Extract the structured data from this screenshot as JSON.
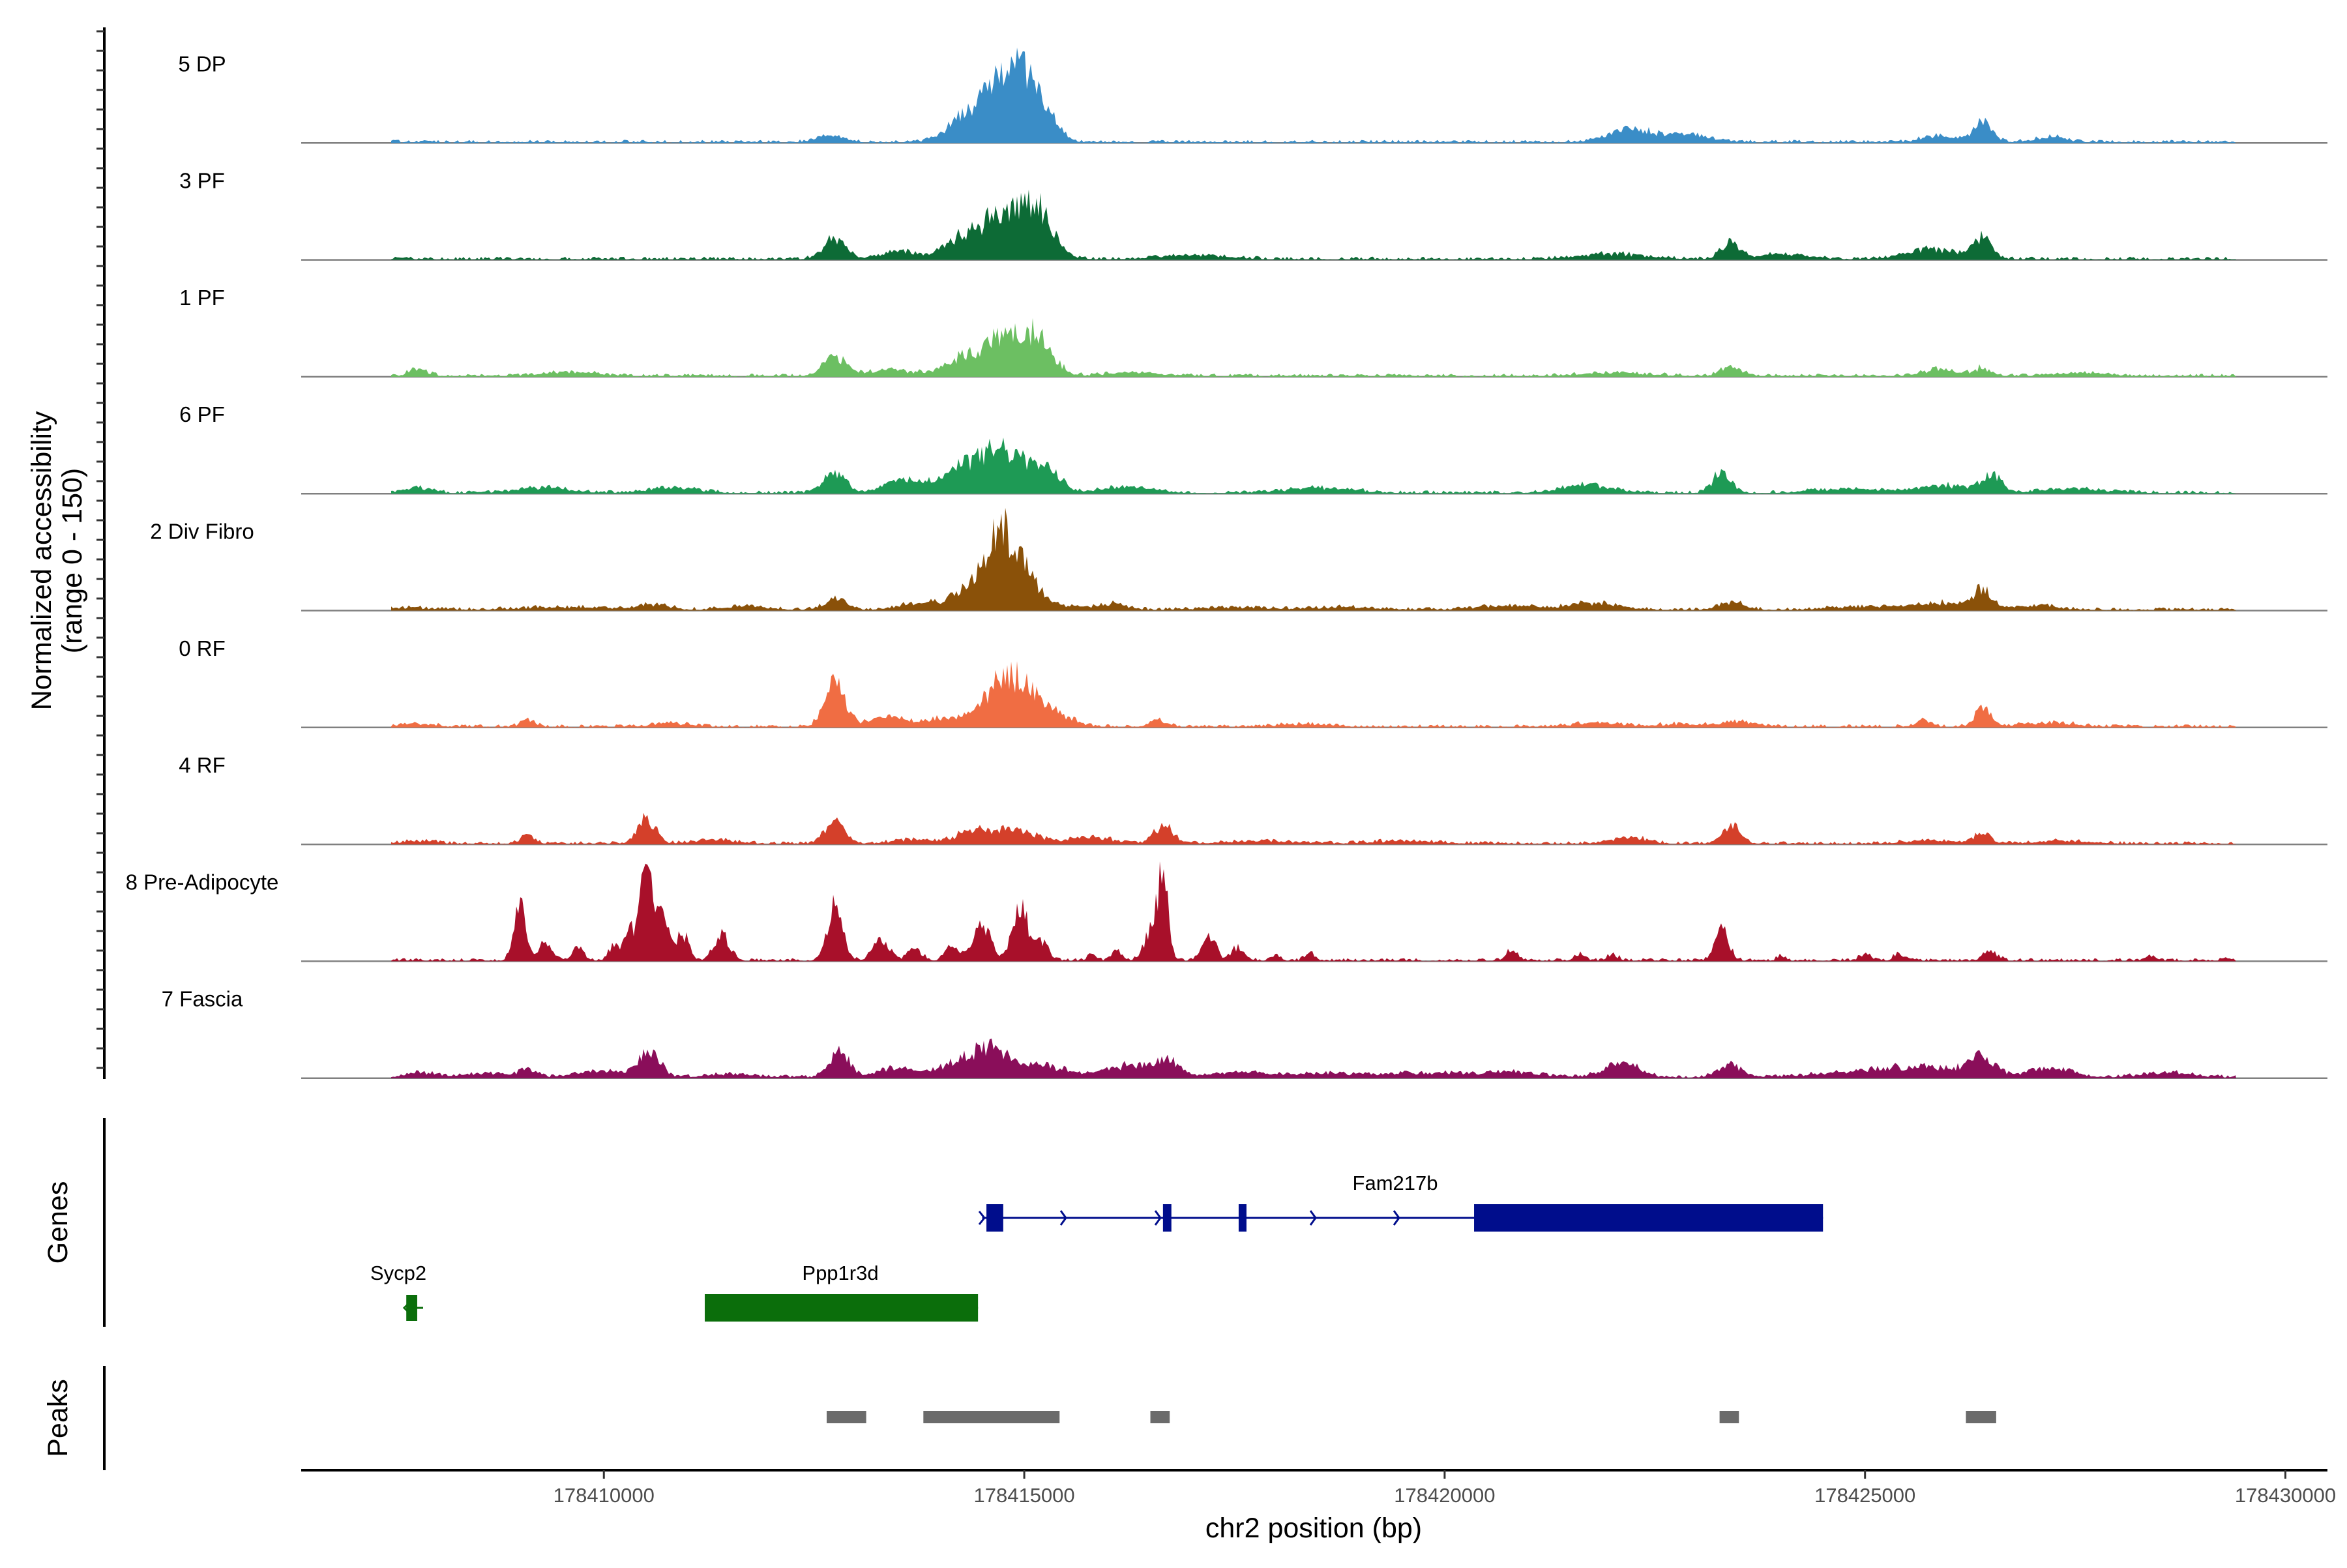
{
  "chart_data": {
    "type": "area",
    "title": "",
    "xlabel": "chr2 position (bp)",
    "ylabel": "Normalized accessibility",
    "ylabel_sub": "(range 0 - 150)",
    "xlim": [
      178406400,
      178430500
    ],
    "ylim": [
      0,
      150
    ],
    "xticks": [
      178410000,
      178415000,
      178420000,
      178425000,
      178430000
    ],
    "xtick_labels": [
      "178410000",
      "178415000",
      "178420000",
      "178425000",
      "178430000"
    ],
    "series": [
      {
        "name": "5 DP",
        "color": "#3a8dc7",
        "peaks": [
          [
            178412700,
            12,
            150
          ],
          [
            178414200,
            18,
            200
          ],
          [
            178414700,
            84,
            280
          ],
          [
            178414950,
            60,
            220
          ],
          [
            178415250,
            35,
            140
          ],
          [
            178422200,
            22,
            250
          ],
          [
            178422900,
            12,
            280
          ],
          [
            178425900,
            10,
            200
          ],
          [
            178426400,
            30,
            110
          ],
          [
            178427200,
            8,
            200
          ]
        ]
      },
      {
        "name": "3 PF",
        "color": "#0d6b36",
        "peaks": [
          [
            178412750,
            35,
            130
          ],
          [
            178413500,
            12,
            200
          ],
          [
            178414200,
            25,
            200
          ],
          [
            178414800,
            78,
            300
          ],
          [
            178415200,
            50,
            160
          ],
          [
            178417000,
            6,
            400
          ],
          [
            178422000,
            8,
            400
          ],
          [
            178423400,
            25,
            110
          ],
          [
            178424000,
            8,
            300
          ],
          [
            178425800,
            16,
            300
          ],
          [
            178426400,
            32,
            110
          ]
        ]
      },
      {
        "name": "1 PF",
        "color": "#6cbf62",
        "peaks": [
          [
            178407800,
            10,
            120
          ],
          [
            178409600,
            6,
            300
          ],
          [
            178412750,
            30,
            130
          ],
          [
            178413400,
            10,
            250
          ],
          [
            178414200,
            20,
            200
          ],
          [
            178414800,
            64,
            300
          ],
          [
            178415200,
            38,
            150
          ],
          [
            178416300,
            6,
            300
          ],
          [
            178422000,
            5,
            400
          ],
          [
            178423400,
            14,
            130
          ],
          [
            178425900,
            10,
            200
          ],
          [
            178426400,
            12,
            110
          ],
          [
            178427600,
            5,
            300
          ]
        ]
      },
      {
        "name": "6 PF",
        "color": "#1e9a55",
        "peaks": [
          [
            178407800,
            8,
            150
          ],
          [
            178409300,
            8,
            300
          ],
          [
            178410800,
            8,
            300
          ],
          [
            178412750,
            30,
            130
          ],
          [
            178413600,
            20,
            250
          ],
          [
            178414300,
            38,
            250
          ],
          [
            178414800,
            62,
            260
          ],
          [
            178415300,
            30,
            150
          ],
          [
            178416200,
            10,
            300
          ],
          [
            178418500,
            8,
            400
          ],
          [
            178421700,
            12,
            300
          ],
          [
            178423300,
            32,
            110
          ],
          [
            178424800,
            6,
            400
          ],
          [
            178425900,
            12,
            300
          ],
          [
            178426500,
            28,
            120
          ],
          [
            178427500,
            6,
            400
          ]
        ]
      },
      {
        "name": "2 Div Fibro",
        "color": "#8a5109",
        "peaks": [
          [
            178407700,
            3,
            300
          ],
          [
            178409500,
            4,
            500
          ],
          [
            178410600,
            8,
            200
          ],
          [
            178411700,
            6,
            250
          ],
          [
            178412750,
            18,
            130
          ],
          [
            178413800,
            12,
            250
          ],
          [
            178414300,
            30,
            150
          ],
          [
            178414700,
            110,
            180
          ],
          [
            178415000,
            50,
            180
          ],
          [
            178415600,
            6,
            250
          ],
          [
            178416100,
            8,
            150
          ],
          [
            178417500,
            4,
            400
          ],
          [
            178418800,
            4,
            400
          ],
          [
            178420800,
            6,
            400
          ],
          [
            178421800,
            10,
            300
          ],
          [
            178423400,
            12,
            150
          ],
          [
            178425000,
            5,
            400
          ],
          [
            178425900,
            10,
            300
          ],
          [
            178426400,
            30,
            110
          ],
          [
            178427000,
            6,
            300
          ]
        ]
      },
      {
        "name": "0 RF",
        "color": "#f06d43",
        "peaks": [
          [
            178407800,
            4,
            200
          ],
          [
            178409100,
            12,
            80
          ],
          [
            178410800,
            5,
            250
          ],
          [
            178412750,
            65,
            120
          ],
          [
            178413400,
            14,
            250
          ],
          [
            178414000,
            12,
            150
          ],
          [
            178414700,
            50,
            250
          ],
          [
            178415000,
            45,
            250
          ],
          [
            178415400,
            12,
            200
          ],
          [
            178416600,
            10,
            100
          ],
          [
            178418300,
            4,
            300
          ],
          [
            178421800,
            6,
            300
          ],
          [
            178422800,
            4,
            300
          ],
          [
            178423500,
            8,
            200
          ],
          [
            178425700,
            10,
            100
          ],
          [
            178426400,
            34,
            90
          ],
          [
            178427200,
            6,
            300
          ]
        ]
      },
      {
        "name": "4 RF",
        "color": "#d4402a",
        "peaks": [
          [
            178407800,
            4,
            200
          ],
          [
            178409100,
            14,
            80
          ],
          [
            178410500,
            40,
            110
          ],
          [
            178411300,
            6,
            250
          ],
          [
            178412750,
            42,
            110
          ],
          [
            178413700,
            6,
            250
          ],
          [
            178414400,
            18,
            200
          ],
          [
            178414900,
            20,
            250
          ],
          [
            178415800,
            10,
            250
          ],
          [
            178416650,
            28,
            110
          ],
          [
            178417800,
            4,
            400
          ],
          [
            178419500,
            4,
            400
          ],
          [
            178422200,
            10,
            200
          ],
          [
            178423400,
            28,
            110
          ],
          [
            178425800,
            5,
            300
          ],
          [
            178426400,
            16,
            100
          ],
          [
            178427400,
            5,
            300
          ]
        ]
      },
      {
        "name": "8 Pre-Adipocyte",
        "color": "#a8102a",
        "peaks": [
          [
            178409000,
            85,
            70
          ],
          [
            178409300,
            30,
            80
          ],
          [
            178409700,
            25,
            60
          ],
          [
            178410100,
            20,
            50
          ],
          [
            178410300,
            45,
            80
          ],
          [
            178410500,
            130,
            70
          ],
          [
            178410700,
            70,
            90
          ],
          [
            178410950,
            40,
            70
          ],
          [
            178411400,
            40,
            90
          ],
          [
            178412750,
            80,
            90
          ],
          [
            178413300,
            30,
            100
          ],
          [
            178413700,
            20,
            80
          ],
          [
            178414150,
            25,
            80
          ],
          [
            178414500,
            55,
            100
          ],
          [
            178414950,
            85,
            90
          ],
          [
            178415200,
            30,
            80
          ],
          [
            178415800,
            10,
            50
          ],
          [
            178416100,
            15,
            60
          ],
          [
            178416500,
            45,
            80
          ],
          [
            178416650,
            130,
            60
          ],
          [
            178417200,
            35,
            80
          ],
          [
            178417550,
            20,
            80
          ],
          [
            178418000,
            10,
            50
          ],
          [
            178418400,
            10,
            60
          ],
          [
            178420800,
            15,
            70
          ],
          [
            178421600,
            10,
            60
          ],
          [
            178422000,
            10,
            60
          ],
          [
            178423300,
            50,
            80
          ],
          [
            178424000,
            10,
            40
          ],
          [
            178425000,
            12,
            60
          ],
          [
            178425400,
            10,
            60
          ],
          [
            178426500,
            15,
            80
          ],
          [
            178428400,
            8,
            60
          ],
          [
            178429300,
            6,
            40
          ]
        ]
      },
      {
        "name": "7 Fascia",
        "color": "#8a0e5a",
        "peaks": [
          [
            178407800,
            8,
            150
          ],
          [
            178408600,
            6,
            300
          ],
          [
            178409100,
            12,
            100
          ],
          [
            178410000,
            10,
            300
          ],
          [
            178410550,
            40,
            120
          ],
          [
            178411500,
            5,
            300
          ],
          [
            178412800,
            38,
            120
          ],
          [
            178413500,
            15,
            250
          ],
          [
            178414200,
            22,
            200
          ],
          [
            178414600,
            42,
            200
          ],
          [
            178415200,
            18,
            300
          ],
          [
            178416200,
            18,
            250
          ],
          [
            178416700,
            25,
            150
          ],
          [
            178417600,
            8,
            300
          ],
          [
            178418600,
            6,
            400
          ],
          [
            178419700,
            6,
            400
          ],
          [
            178420700,
            8,
            400
          ],
          [
            178422100,
            25,
            200
          ],
          [
            178423400,
            20,
            150
          ],
          [
            178424600,
            6,
            400
          ],
          [
            178425300,
            12,
            300
          ],
          [
            178425900,
            15,
            300
          ],
          [
            178426400,
            30,
            150
          ],
          [
            178427200,
            15,
            250
          ],
          [
            178428600,
            8,
            300
          ]
        ]
      }
    ],
    "genes": [
      {
        "name": "Fam217b",
        "start": 178414500,
        "end": 178424500,
        "strand": "+",
        "color": "#000d8c",
        "exons": [
          [
            178414550,
            178414750
          ],
          [
            178416650,
            178416750
          ],
          [
            178417550,
            178417630
          ],
          [
            178420350,
            178424500
          ]
        ]
      },
      {
        "name": "Sycp2",
        "start": 178407650,
        "end": 178407850,
        "strand": "-",
        "color": "#0b6e0b",
        "exons": [
          [
            178407650,
            178407780
          ]
        ]
      },
      {
        "name": "Ppp1r3d",
        "start": 178411200,
        "end": 178414450,
        "strand": "+",
        "color": "#0b6e0b",
        "exons": [
          [
            178411200,
            178414450
          ]
        ]
      }
    ],
    "peak_regions": [
      [
        178412650,
        178413120
      ],
      [
        178413800,
        178415420
      ],
      [
        178416500,
        178416730
      ],
      [
        178423270,
        178423500
      ],
      [
        178426200,
        178426560
      ]
    ],
    "panel_titles": {
      "genes": "Genes",
      "peaks": "Peaks"
    }
  }
}
